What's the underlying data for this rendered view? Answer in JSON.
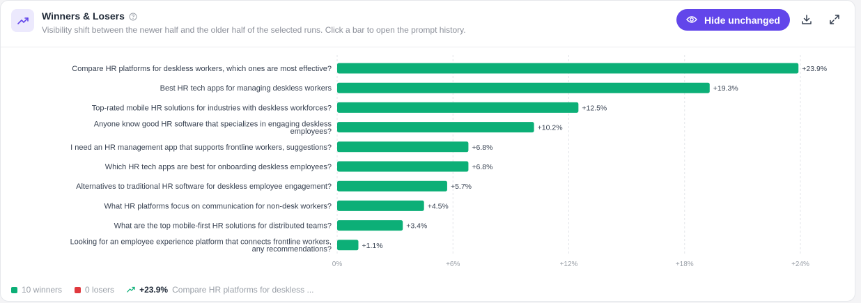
{
  "header": {
    "title": "Winners & Losers",
    "subtitle": "Visibility shift between the newer half and the older half of the selected runs. Click a bar to open the prompt history.",
    "hide_label": "Hide unchanged",
    "title_icon": "trending-up-icon",
    "help_icon": "help-circle-icon",
    "download_icon": "download-icon",
    "expand_icon": "expand-icon"
  },
  "colors": {
    "winner": "#0caf77",
    "loser": "#e0393e",
    "accent": "#6246ea"
  },
  "chart_data": {
    "type": "bar",
    "orientation": "horizontal",
    "categories": [
      "Compare HR platforms for deskless workers, which ones are most effective?",
      "Best HR tech apps for managing deskless workers",
      "Top-rated mobile HR solutions for industries with deskless workforces?",
      "Anyone know good HR software that specializes in engaging deskless employees?",
      "I need an HR management app that supports frontline workers, suggestions?",
      "Which HR tech apps are best for onboarding deskless employees?",
      "Alternatives to traditional HR software for deskless employee engagement?",
      "What HR platforms focus on communication for non-desk workers?",
      "What are the top mobile-first HR solutions for distributed teams?",
      "Looking for an employee experience platform that connects frontline workers, any recommendations?"
    ],
    "values": [
      23.9,
      19.3,
      12.5,
      10.2,
      6.8,
      6.8,
      5.7,
      4.5,
      3.4,
      1.1
    ],
    "value_labels": [
      "+23.9%",
      "+19.3%",
      "+12.5%",
      "+10.2%",
      "+6.8%",
      "+6.8%",
      "+5.7%",
      "+4.5%",
      "+3.4%",
      "+1.1%"
    ],
    "xlim": [
      0,
      24
    ],
    "xticks": [
      0,
      6,
      12,
      18,
      24
    ],
    "xtick_labels": [
      "0%",
      "+6%",
      "+12%",
      "+18%",
      "+24%"
    ],
    "grid": true
  },
  "legend": {
    "winners": "10 winners",
    "losers": "0 losers",
    "top_value": "+23.9%",
    "top_label": "Compare HR platforms for deskless ..."
  }
}
